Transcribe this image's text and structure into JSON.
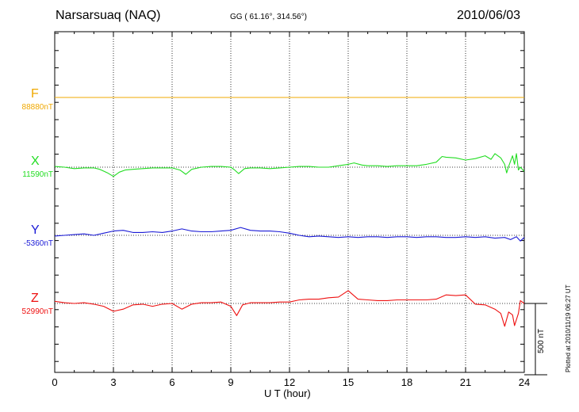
{
  "header": {
    "station": "Narsarsuaq (NAQ)",
    "coords": "GG ( 61.16°, 314.56°)",
    "date": "2010/06/03"
  },
  "footer": {
    "plotted": "Plotted at 2010/11/19 06:27 UT",
    "scale_label": "500 nT"
  },
  "chart_data": {
    "type": "line",
    "title": "Narsarsuaq (NAQ)",
    "xlabel": "U T (hour)",
    "ylabel": "",
    "xlim": [
      0,
      24
    ],
    "xticks": [
      "0",
      "3",
      "6",
      "9",
      "12",
      "15",
      "18",
      "21",
      "24"
    ],
    "grid": true,
    "scale_bar_nT": 500,
    "series": [
      {
        "name": "F",
        "baseline_label": "88880nT",
        "color": "#f0a800",
        "x": [
          0,
          24
        ],
        "y": [
          0,
          0
        ]
      },
      {
        "name": "X",
        "baseline_label": "11590nT",
        "color": "#22dd22",
        "x": [
          0,
          0.5,
          1,
          1.5,
          2,
          2.3,
          2.7,
          3.0,
          3.3,
          3.6,
          4,
          4.5,
          5,
          5.5,
          6,
          6.4,
          6.7,
          7,
          7.5,
          8,
          8.5,
          9,
          9.2,
          9.4,
          9.7,
          10,
          10.5,
          11,
          11.5,
          12,
          12.5,
          13,
          13.5,
          14,
          14.5,
          15,
          15.3,
          15.7,
          16,
          16.5,
          17,
          17.5,
          18,
          18.5,
          19,
          19.5,
          19.8,
          20,
          20.5,
          21,
          21.5,
          22,
          22.3,
          22.5,
          22.8,
          23,
          23.1,
          23.2,
          23.4,
          23.5,
          23.6,
          23.7,
          23.8,
          24
        ],
        "y": [
          5,
          0,
          -10,
          -5,
          -5,
          -15,
          -40,
          -65,
          -35,
          -20,
          -15,
          -10,
          -5,
          -5,
          -5,
          -20,
          -50,
          -15,
          0,
          5,
          5,
          0,
          -20,
          -45,
          -10,
          -5,
          -5,
          -10,
          -5,
          0,
          5,
          5,
          0,
          0,
          10,
          20,
          30,
          15,
          10,
          10,
          5,
          10,
          10,
          10,
          20,
          35,
          75,
          70,
          65,
          50,
          60,
          80,
          55,
          95,
          65,
          20,
          -40,
          5,
          80,
          20,
          95,
          -20,
          0,
          -30
        ]
      },
      {
        "name": "Y",
        "baseline_label": "-5360nT",
        "color": "#1a1ad6",
        "x": [
          0,
          0.5,
          1,
          1.5,
          2,
          2.5,
          3,
          3.5,
          4,
          4.5,
          5,
          5.5,
          6,
          6.5,
          7,
          7.5,
          8,
          8.5,
          9,
          9.5,
          10,
          10.5,
          11,
          11.5,
          12,
          12.5,
          13,
          13.5,
          14,
          14.5,
          15,
          15.5,
          16,
          16.5,
          17,
          17.5,
          18,
          18.5,
          19,
          19.5,
          20,
          20.5,
          21,
          21.5,
          22,
          22.5,
          23,
          23.3,
          23.6,
          23.8,
          24
        ],
        "y": [
          -5,
          0,
          5,
          10,
          0,
          15,
          30,
          35,
          20,
          20,
          25,
          20,
          30,
          45,
          30,
          25,
          25,
          30,
          35,
          55,
          35,
          30,
          30,
          25,
          15,
          0,
          -10,
          -5,
          -10,
          -15,
          -10,
          -15,
          -10,
          -10,
          -15,
          -10,
          -10,
          -15,
          -10,
          -10,
          -15,
          -15,
          -10,
          -15,
          -10,
          -20,
          -15,
          -30,
          -10,
          -40,
          -15
        ]
      },
      {
        "name": "Z",
        "baseline_label": "52990nT",
        "color": "#ee1111",
        "x": [
          0,
          0.5,
          1,
          1.5,
          2,
          2.5,
          3,
          3.5,
          4,
          4.5,
          5,
          5.5,
          6,
          6.5,
          7,
          7.5,
          8,
          8.5,
          9,
          9.3,
          9.6,
          10,
          10.5,
          11,
          11.5,
          12,
          12.5,
          13,
          13.5,
          14,
          14.5,
          15,
          15.5,
          16,
          16.5,
          17,
          17.5,
          18,
          18.5,
          19,
          19.5,
          20,
          20.5,
          21,
          21.5,
          22,
          22.5,
          22.8,
          23,
          23.2,
          23.4,
          23.5,
          23.7,
          23.8,
          24
        ],
        "y": [
          15,
          5,
          0,
          5,
          -5,
          -20,
          -55,
          -40,
          -10,
          -5,
          -20,
          -5,
          0,
          -40,
          -5,
          5,
          5,
          10,
          -20,
          -85,
          -10,
          5,
          5,
          5,
          10,
          10,
          25,
          30,
          30,
          40,
          45,
          90,
          30,
          25,
          20,
          20,
          25,
          25,
          25,
          25,
          30,
          60,
          55,
          60,
          -5,
          -10,
          -40,
          -70,
          -160,
          -60,
          -80,
          -155,
          -70,
          20,
          0
        ]
      }
    ]
  }
}
